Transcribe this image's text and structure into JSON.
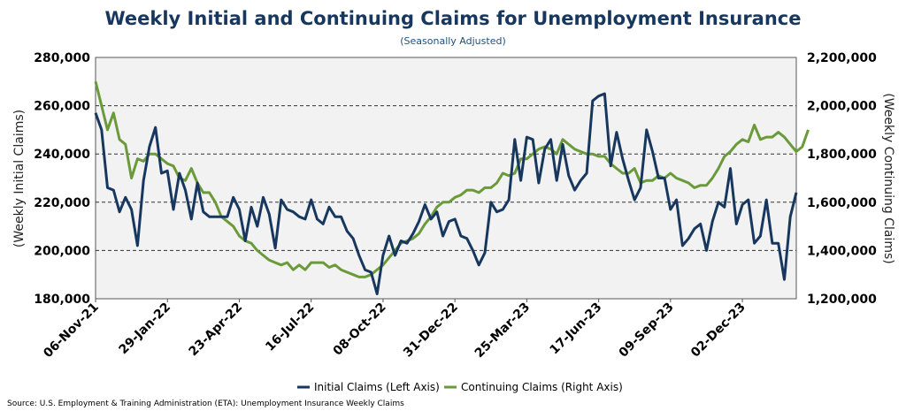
{
  "chart_data": {
    "type": "line",
    "title": "Weekly Initial and Continuing Claims for Unemployment Insurance",
    "subtitle": "(Seasonally Adjusted)",
    "ylabel_left": "(Weekly Initial Claims)",
    "ylabel_right": "(Weekly Continuing Claims)",
    "left_axis": {
      "range": [
        180000,
        280000
      ],
      "ticks": [
        "180,000",
        "200,000",
        "220,000",
        "240,000",
        "260,000",
        "280,000"
      ]
    },
    "right_axis": {
      "range": [
        1200000,
        2200000
      ],
      "ticks": [
        "1,200,000",
        "1,400,000",
        "1,600,000",
        "1,800,000",
        "2,000,000",
        "2,200,000"
      ]
    },
    "x_tick_labels": [
      "06-Nov-21",
      "29-Jan-22",
      "23-Apr-22",
      "16-Jul-22",
      "08-Oct-22",
      "31-Dec-22",
      "25-Mar-23",
      "17-Jun-23",
      "09-Sep-23",
      "02-Dec-23"
    ],
    "x_tick_every_weeks": 12,
    "grid": "horizontal dashed",
    "legend_position": "bottom-center",
    "colors": {
      "initial": "#17375e",
      "continuing": "#6a9a3a",
      "plot_bg": "#f2f2f2",
      "title": "#17375e"
    },
    "series": [
      {
        "name": "Initial Claims (Left Axis)",
        "axis": "left",
        "values": [
          257000,
          250000,
          226000,
          225000,
          216000,
          222000,
          217000,
          202000,
          229000,
          243000,
          251000,
          232000,
          233000,
          217000,
          232000,
          225000,
          213000,
          228000,
          216000,
          214000,
          214000,
          214000,
          214000,
          222000,
          217000,
          204000,
          218000,
          210000,
          222000,
          215000,
          201000,
          221000,
          217000,
          216000,
          214000,
          213000,
          221000,
          213000,
          211000,
          218000,
          214000,
          214000,
          208000,
          205000,
          198000,
          192000,
          191000,
          182000,
          198000,
          206000,
          198000,
          204000,
          203000,
          207000,
          212000,
          219000,
          213000,
          216000,
          206000,
          212000,
          213000,
          206000,
          205000,
          200000,
          194000,
          199000,
          220000,
          216000,
          217000,
          221000,
          246000,
          229000,
          247000,
          246000,
          228000,
          242000,
          246000,
          229000,
          244000,
          231000,
          225000,
          229000,
          232000,
          262000,
          264000,
          265000,
          235000,
          249000,
          238000,
          229000,
          221000,
          226000,
          250000,
          241000,
          230000,
          230000,
          217000,
          221000,
          202000,
          205000,
          209000,
          211000,
          200000,
          212000,
          220000,
          218000,
          234000,
          211000,
          219000,
          221000,
          203000,
          206000,
          221000,
          203000,
          203000,
          188000,
          214000,
          224000
        ]
      },
      {
        "name": "Continuing Claims (Right Axis)",
        "axis": "right",
        "values": [
          2100000,
          2000000,
          1900000,
          1970000,
          1860000,
          1840000,
          1700000,
          1780000,
          1770000,
          1800000,
          1800000,
          1780000,
          1760000,
          1750000,
          1700000,
          1690000,
          1740000,
          1680000,
          1640000,
          1640000,
          1600000,
          1540000,
          1520000,
          1500000,
          1460000,
          1440000,
          1430000,
          1400000,
          1380000,
          1360000,
          1350000,
          1340000,
          1350000,
          1320000,
          1340000,
          1320000,
          1350000,
          1350000,
          1350000,
          1330000,
          1340000,
          1320000,
          1310000,
          1300000,
          1290000,
          1290000,
          1300000,
          1320000,
          1340000,
          1370000,
          1400000,
          1430000,
          1440000,
          1450000,
          1470000,
          1510000,
          1540000,
          1580000,
          1600000,
          1600000,
          1620000,
          1630000,
          1650000,
          1650000,
          1640000,
          1660000,
          1660000,
          1680000,
          1720000,
          1710000,
          1720000,
          1780000,
          1780000,
          1800000,
          1820000,
          1830000,
          1820000,
          1800000,
          1860000,
          1840000,
          1820000,
          1810000,
          1800000,
          1800000,
          1790000,
          1790000,
          1760000,
          1740000,
          1720000,
          1720000,
          1740000,
          1680000,
          1690000,
          1690000,
          1710000,
          1700000,
          1720000,
          1700000,
          1690000,
          1680000,
          1660000,
          1670000,
          1670000,
          1700000,
          1740000,
          1790000,
          1810000,
          1840000,
          1860000,
          1850000,
          1920000,
          1860000,
          1870000,
          1870000,
          1890000,
          1870000,
          1840000,
          1810000,
          1830000,
          1900000
        ]
      }
    ],
    "source": "Source: U.S. Employment & Training Administration (ETA): Unemployment Insurance Weekly Claims"
  }
}
